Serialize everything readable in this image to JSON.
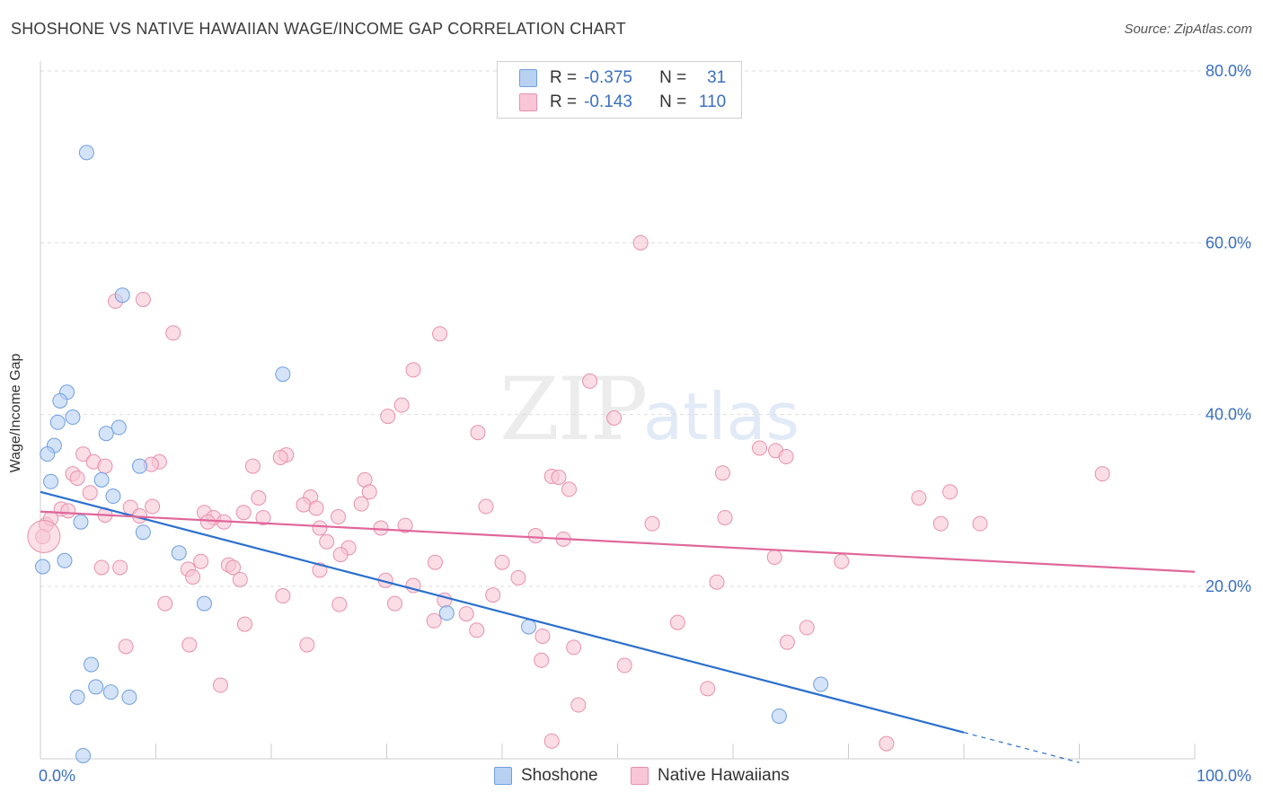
{
  "title": "SHOSHONE VS NATIVE HAWAIIAN WAGE/INCOME GAP CORRELATION CHART",
  "source": "Source: ZipAtlas.com",
  "watermark": {
    "zip": "ZIP",
    "atlas": "atlas"
  },
  "legend": {
    "rows": [
      {
        "r_label": "R =",
        "r_value": "-0.375",
        "n_label": "N =",
        "n_value": "31"
      },
      {
        "r_label": "R =",
        "r_value": "-0.143",
        "n_label": "N =",
        "n_value": "110"
      }
    ]
  },
  "bottom_legend": [
    {
      "label": "Shoshone"
    },
    {
      "label": "Native Hawaiians"
    }
  ],
  "colors": {
    "blue_fill": "#b8d1f3",
    "blue_stroke": "#6f9ee0",
    "blue_line": "#2a6fcf",
    "pink_fill": "#f8c6d6",
    "pink_stroke": "#e890ae",
    "pink_line": "#e0679a",
    "axis_text": "#3a6fc4",
    "grid": "#dddddd"
  },
  "chart_data": {
    "type": "scatter",
    "title": "SHOSHONE VS NATIVE HAWAIIAN WAGE/INCOME GAP CORRELATION CHART",
    "xlabel": "",
    "ylabel": "Wage/Income Gap",
    "xlim": [
      0,
      100
    ],
    "ylim": [
      0,
      82
    ],
    "x_tick_labels": [
      "0.0%",
      "100.0%"
    ],
    "y_ticks": [
      20,
      40,
      60,
      80
    ],
    "y_tick_labels": [
      "20.0%",
      "40.0%",
      "60.0%",
      "80.0%"
    ],
    "grid": true,
    "legend_position": "top-center",
    "series": [
      {
        "name": "Shoshone",
        "r": -0.375,
        "n": 31,
        "trend": {
          "x0": 0,
          "y0": 31.0,
          "x1": 80,
          "y1": 3.0,
          "dashed_to_x": 90,
          "dashed_to_y": -0.5
        },
        "points": [
          [
            4.0,
            70.5
          ],
          [
            7.1,
            53.9
          ],
          [
            21.0,
            44.7
          ],
          [
            2.3,
            42.6
          ],
          [
            1.7,
            41.6
          ],
          [
            2.8,
            39.7
          ],
          [
            1.5,
            39.1
          ],
          [
            6.8,
            38.5
          ],
          [
            5.7,
            37.8
          ],
          [
            1.2,
            36.4
          ],
          [
            0.6,
            35.4
          ],
          [
            8.6,
            34.0
          ],
          [
            0.9,
            32.2
          ],
          [
            5.3,
            32.4
          ],
          [
            6.3,
            30.5
          ],
          [
            3.5,
            27.5
          ],
          [
            8.9,
            26.3
          ],
          [
            12.0,
            23.9
          ],
          [
            2.1,
            23.0
          ],
          [
            0.2,
            22.3
          ],
          [
            14.2,
            18.0
          ],
          [
            35.2,
            16.9
          ],
          [
            42.3,
            15.3
          ],
          [
            4.4,
            10.9
          ],
          [
            4.8,
            8.3
          ],
          [
            6.1,
            7.7
          ],
          [
            3.2,
            7.1
          ],
          [
            7.7,
            7.1
          ],
          [
            67.6,
            8.6
          ],
          [
            64.0,
            4.9
          ],
          [
            3.7,
            0.3
          ]
        ]
      },
      {
        "name": "Native Hawaiians",
        "r": -0.143,
        "n": 110,
        "trend": {
          "x0": 0,
          "y0": 28.7,
          "x1": 100,
          "y1": 21.7
        },
        "points": [
          [
            52.0,
            60.0
          ],
          [
            6.5,
            53.2
          ],
          [
            8.9,
            53.4
          ],
          [
            11.5,
            49.5
          ],
          [
            34.6,
            49.4
          ],
          [
            32.3,
            45.2
          ],
          [
            47.6,
            43.9
          ],
          [
            31.3,
            41.1
          ],
          [
            30.1,
            39.8
          ],
          [
            49.7,
            39.6
          ],
          [
            37.9,
            37.9
          ],
          [
            62.3,
            36.1
          ],
          [
            63.7,
            35.8
          ],
          [
            64.6,
            35.1
          ],
          [
            3.7,
            35.4
          ],
          [
            21.3,
            35.3
          ],
          [
            20.8,
            35.0
          ],
          [
            4.6,
            34.5
          ],
          [
            5.6,
            34.0
          ],
          [
            10.3,
            34.5
          ],
          [
            9.6,
            34.2
          ],
          [
            18.4,
            34.0
          ],
          [
            92.0,
            33.1
          ],
          [
            59.1,
            33.2
          ],
          [
            2.8,
            33.1
          ],
          [
            3.2,
            32.6
          ],
          [
            44.3,
            32.8
          ],
          [
            44.9,
            32.7
          ],
          [
            28.1,
            32.4
          ],
          [
            45.8,
            31.3
          ],
          [
            28.5,
            31.0
          ],
          [
            78.8,
            31.0
          ],
          [
            4.3,
            30.9
          ],
          [
            76.1,
            30.3
          ],
          [
            23.4,
            30.4
          ],
          [
            18.9,
            30.3
          ],
          [
            22.8,
            29.5
          ],
          [
            27.8,
            29.6
          ],
          [
            38.6,
            29.3
          ],
          [
            9.7,
            29.3
          ],
          [
            7.8,
            29.2
          ],
          [
            23.9,
            29.1
          ],
          [
            1.8,
            29.0
          ],
          [
            2.4,
            28.8
          ],
          [
            0.5,
            27.2
          ],
          [
            0.9,
            27.9
          ],
          [
            14.2,
            28.6
          ],
          [
            17.6,
            28.6
          ],
          [
            8.6,
            28.2
          ],
          [
            25.8,
            28.1
          ],
          [
            19.3,
            28.0
          ],
          [
            15.0,
            28.0
          ],
          [
            59.3,
            28.0
          ],
          [
            14.5,
            27.5
          ],
          [
            15.9,
            27.5
          ],
          [
            53.0,
            27.3
          ],
          [
            78.0,
            27.3
          ],
          [
            81.4,
            27.3
          ],
          [
            31.6,
            27.1
          ],
          [
            24.2,
            26.8
          ],
          [
            29.5,
            26.8
          ],
          [
            0.2,
            25.8
          ],
          [
            42.9,
            25.9
          ],
          [
            45.3,
            25.5
          ],
          [
            24.8,
            25.2
          ],
          [
            26.7,
            24.5
          ],
          [
            26.0,
            23.7
          ],
          [
            63.6,
            23.4
          ],
          [
            69.4,
            22.9
          ],
          [
            13.9,
            22.9
          ],
          [
            34.2,
            22.8
          ],
          [
            40.0,
            22.8
          ],
          [
            16.3,
            22.5
          ],
          [
            16.7,
            22.2
          ],
          [
            5.3,
            22.2
          ],
          [
            6.9,
            22.2
          ],
          [
            12.8,
            22.0
          ],
          [
            24.2,
            21.9
          ],
          [
            13.2,
            21.1
          ],
          [
            41.4,
            21.0
          ],
          [
            17.3,
            20.8
          ],
          [
            29.9,
            20.7
          ],
          [
            58.6,
            20.5
          ],
          [
            32.3,
            20.1
          ],
          [
            39.2,
            19.0
          ],
          [
            21.0,
            18.9
          ],
          [
            35.0,
            18.4
          ],
          [
            10.8,
            18.0
          ],
          [
            25.9,
            17.9
          ],
          [
            30.7,
            18.0
          ],
          [
            36.9,
            16.8
          ],
          [
            34.1,
            16.0
          ],
          [
            55.2,
            15.8
          ],
          [
            17.7,
            15.6
          ],
          [
            66.4,
            15.2
          ],
          [
            37.8,
            14.9
          ],
          [
            43.5,
            14.2
          ],
          [
            64.7,
            13.5
          ],
          [
            12.9,
            13.2
          ],
          [
            23.1,
            13.2
          ],
          [
            7.4,
            13.0
          ],
          [
            46.2,
            12.9
          ],
          [
            43.4,
            11.4
          ],
          [
            50.6,
            10.8
          ],
          [
            15.6,
            8.5
          ],
          [
            57.8,
            8.1
          ],
          [
            46.6,
            6.2
          ],
          [
            73.3,
            1.7
          ],
          [
            44.3,
            2.0
          ],
          [
            5.6,
            28.3
          ]
        ]
      }
    ]
  }
}
